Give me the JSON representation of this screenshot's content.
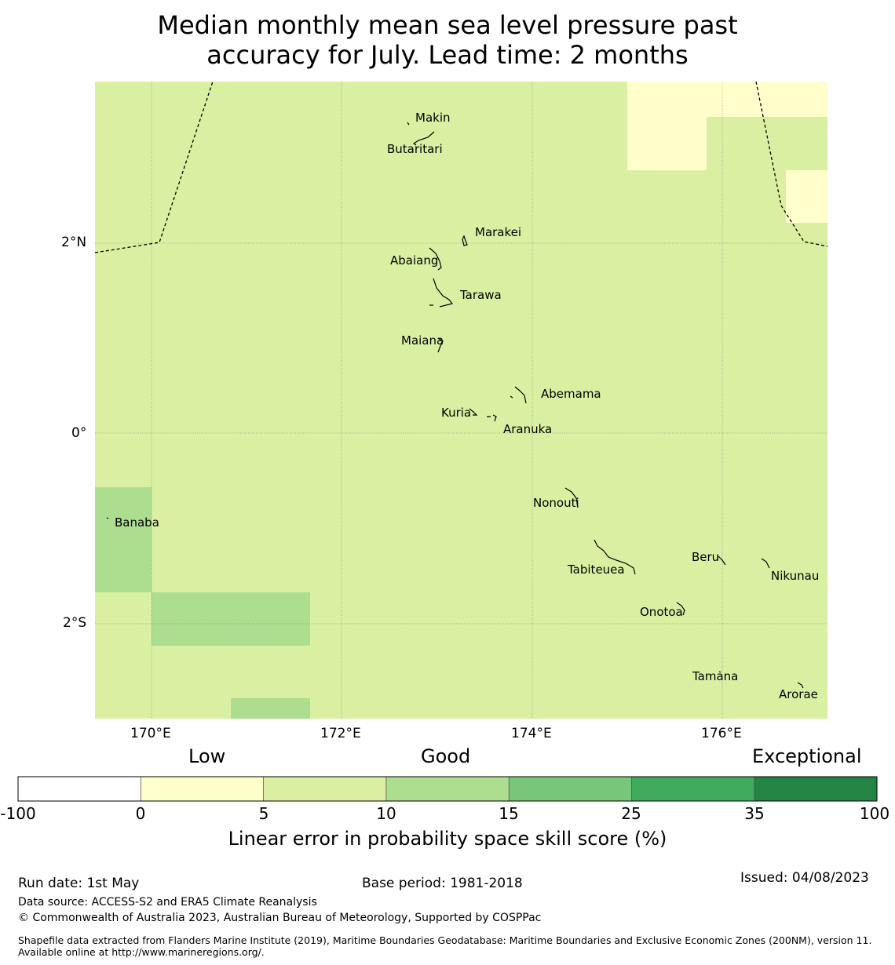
{
  "title": {
    "line1": "Median monthly mean sea level pressure past",
    "line2": "accuracy for July. Lead time: 2 months"
  },
  "map": {
    "lon_range": [
      169.4,
      177.1
    ],
    "lat_range": [
      -3.0,
      3.7
    ],
    "x_ticks": [
      {
        "value": 170,
        "label": "170°E"
      },
      {
        "value": 172,
        "label": "172°E"
      },
      {
        "value": 174,
        "label": "174°E"
      },
      {
        "value": 176,
        "label": "176°E"
      }
    ],
    "y_ticks": [
      {
        "value": 2,
        "label": "2°N"
      },
      {
        "value": 0,
        "label": "0°"
      },
      {
        "value": -2,
        "label": "2°S"
      }
    ],
    "islands": [
      {
        "name": "Makin",
        "lon": 172.95,
        "lat": 3.3
      },
      {
        "name": "Butaritari",
        "lon": 172.78,
        "lat": 3.07
      },
      {
        "name": "Marakei",
        "lon": 173.28,
        "lat": 2.0
      },
      {
        "name": "Abaiang",
        "lon": 172.97,
        "lat": 1.83
      },
      {
        "name": "Tarawa",
        "lon": 173.05,
        "lat": 1.4
      },
      {
        "name": "Maiana",
        "lon": 173.02,
        "lat": 0.93
      },
      {
        "name": "Abemama",
        "lon": 173.87,
        "lat": 0.4
      },
      {
        "name": "Kuria",
        "lon": 173.4,
        "lat": 0.22
      },
      {
        "name": "Aranuka",
        "lon": 173.62,
        "lat": 0.17
      },
      {
        "name": "Nonouti",
        "lon": 174.4,
        "lat": -0.67
      },
      {
        "name": "Banaba",
        "lon": 169.53,
        "lat": -0.86
      },
      {
        "name": "Tabiteuea",
        "lon": 174.85,
        "lat": -1.35
      },
      {
        "name": "Beru",
        "lon": 176.0,
        "lat": -1.33
      },
      {
        "name": "Nikunau",
        "lon": 176.45,
        "lat": -1.35
      },
      {
        "name": "Onotoa",
        "lon": 175.55,
        "lat": -1.85
      },
      {
        "name": "Tamana",
        "lon": 175.97,
        "lat": -2.5
      },
      {
        "name": "Arorae",
        "lon": 176.82,
        "lat": -2.65
      }
    ]
  },
  "colorbar": {
    "category_labels": [
      "Low",
      "Good",
      "Exceptional"
    ],
    "ticks": [
      "-100",
      "0",
      "5",
      "10",
      "15",
      "25",
      "35",
      "100"
    ],
    "colors": [
      "#ffffff",
      "#ffffcc",
      "#d9f0a3",
      "#addd8e",
      "#78c679",
      "#41ab5d",
      "#238443"
    ],
    "title": "Linear error in probability space skill score (%)"
  },
  "footer": {
    "run_date": "Run date: 1st May",
    "base_period": "Base period: 1981-2018",
    "issued": "Issued: 04/08/2023",
    "data_source": "Data source: ACCESS-S2 and ERA5 Climate Reanalysis",
    "copyright": "© Commonwealth of Australia 2023, Australian Bureau of Meteorology, Supported by COSPPac",
    "shapefile": "Shapefile data extracted from Flanders Marine Institute (2019), Maritime Boundaries Geodatabase: Maritime Boundaries and Exclusive Economic Zones (200NM), version 11. Available online at http://www.marineregions.org/."
  }
}
